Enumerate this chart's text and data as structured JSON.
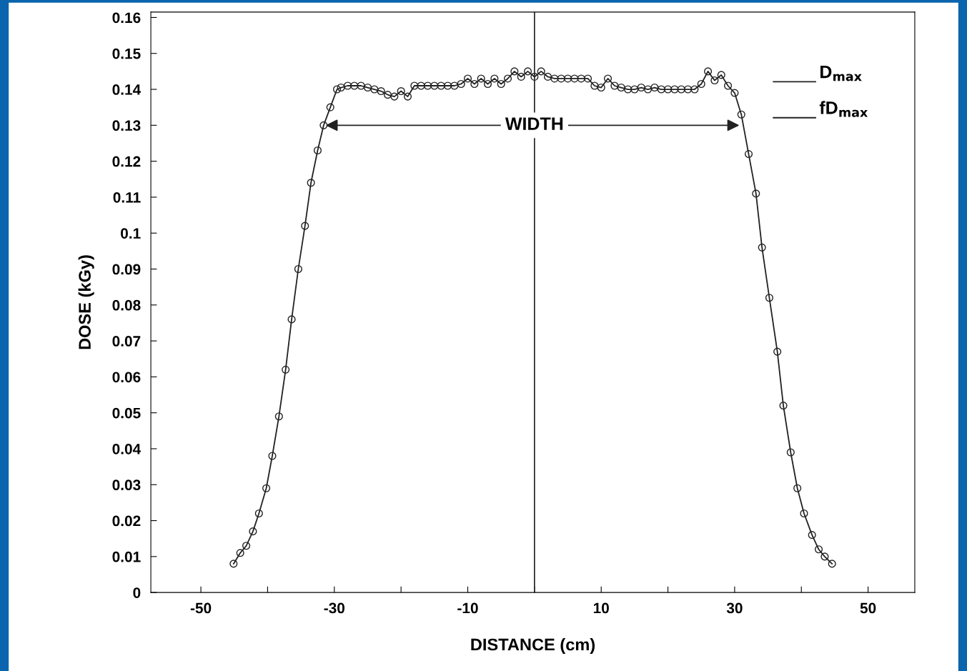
{
  "chart_data": {
    "type": "line",
    "xlabel": "DISTANCE (cm)",
    "ylabel": "DOSE (kGy)",
    "x": [
      -45.1,
      -44.1,
      -43.2,
      -42.2,
      -41.3,
      -40.2,
      -39.3,
      -38.3,
      -37.3,
      -36.4,
      -35.4,
      -34.4,
      -33.5,
      -32.5,
      -31.6,
      -30.6,
      -29.6,
      -29,
      -28,
      -27,
      -26,
      -25,
      -24,
      -23,
      -22,
      -21,
      -20,
      -19,
      -18,
      -17,
      -16,
      -15,
      -14,
      -13,
      -12,
      -11,
      -10,
      -9,
      -8,
      -7,
      -6,
      -5,
      -4,
      -3,
      -2,
      -1,
      0,
      1,
      2,
      3,
      4,
      5,
      6,
      7,
      8,
      9,
      10,
      11,
      12,
      13,
      14,
      15,
      16,
      17,
      18,
      19,
      20,
      21,
      22,
      23,
      24,
      25,
      26,
      27,
      28,
      29,
      30,
      31.0,
      32.1,
      33.2,
      34.1,
      35.2,
      36.4,
      37.3,
      38.4,
      39.4,
      40.4,
      41.6,
      42.6,
      43.5,
      44.6
    ],
    "series": [
      {
        "color": "#222222",
        "values": [
          0.008,
          0.011,
          0.013,
          0.017,
          0.022,
          0.029,
          0.038,
          0.049,
          0.062,
          0.076,
          0.09,
          0.102,
          0.114,
          0.123,
          0.13,
          0.135,
          0.14,
          0.1405,
          0.141,
          0.141,
          0.141,
          0.1405,
          0.14,
          0.1395,
          0.1385,
          0.138,
          0.1395,
          0.138,
          0.141,
          0.141,
          0.141,
          0.141,
          0.141,
          0.141,
          0.141,
          0.1415,
          0.143,
          0.1415,
          0.143,
          0.1415,
          0.143,
          0.1415,
          0.143,
          0.145,
          0.1435,
          0.145,
          0.1435,
          0.145,
          0.1435,
          0.143,
          0.143,
          0.143,
          0.143,
          0.143,
          0.143,
          0.141,
          0.1405,
          0.143,
          0.141,
          0.1405,
          0.14,
          0.14,
          0.1405,
          0.14,
          0.1405,
          0.14,
          0.14,
          0.14,
          0.14,
          0.14,
          0.14,
          0.1415,
          0.145,
          0.1425,
          0.144,
          0.141,
          0.139,
          0.133,
          0.122,
          0.111,
          0.096,
          0.082,
          0.067,
          0.052,
          0.039,
          0.029,
          0.022,
          0.016,
          0.012,
          0.01,
          0.008
        ]
      }
    ],
    "marker": "circle",
    "line_style": "solid",
    "grid": false,
    "legend": false,
    "xlim": [
      -57.5,
      57
    ],
    "ylim": [
      0,
      0.1615
    ],
    "xticks": [
      -50,
      {
        "value": -40,
        "label": null
      },
      -30,
      {
        "value": -20,
        "label": null
      },
      -10,
      {
        "value": 0,
        "label": null
      },
      10,
      {
        "value": 20,
        "label": null
      },
      30,
      {
        "value": 40,
        "label": null
      },
      50
    ],
    "yticks": [
      0,
      0.01,
      0.02,
      0.03,
      0.04,
      0.05,
      0.06,
      0.07,
      0.08,
      0.09,
      0.1,
      0.11,
      0.12,
      0.13,
      0.14,
      0.15,
      0.16
    ],
    "ref_lines": [
      {
        "axis": "x",
        "value": 0,
        "color": "#222222"
      }
    ],
    "annotations": [
      {
        "text": "WIDTH",
        "x": 0,
        "y": 0.13
      },
      "D$_{max}$",
      "fD$_{max}$"
    ]
  }
}
